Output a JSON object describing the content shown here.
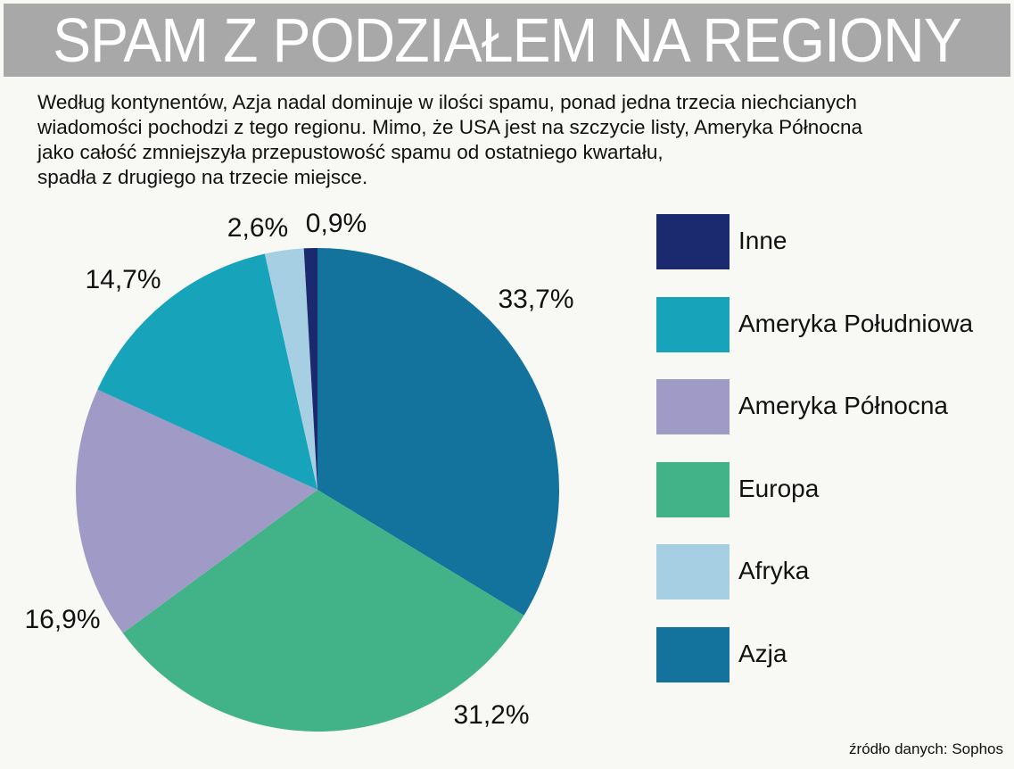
{
  "title": "SPAM Z PODZIAŁEM NA REGIONY",
  "description": "Według kontynentów, Azja nadal dominuje w ilości spamu, ponad jedna trzecia niechcianych\nwiadomości pochodzi z tego regionu. Mimo, że USA jest na szczycie listy, Ameryka Północna\njako całość zmniejszyła przepustowość spamu od ostatniego kwartału,\nspadła z drugiego na trzecie miejsce.",
  "source": "źródło danych: Sophos",
  "chart_data": {
    "type": "pie",
    "title": "SPAM Z PODZIAŁEM NA REGIONY",
    "slices": [
      {
        "name": "Azja",
        "value": 33.7,
        "label": "33,7%",
        "color": "#13739c"
      },
      {
        "name": "Europa",
        "value": 31.2,
        "label": "31,2%",
        "color": "#42b388"
      },
      {
        "name": "Ameryka Północna",
        "value": 16.9,
        "label": "16,9%",
        "color": "#a09bc6"
      },
      {
        "name": "Ameryka Południowa",
        "value": 14.7,
        "label": "14,7%",
        "color": "#17a4ba"
      },
      {
        "name": "Afryka",
        "value": 2.6,
        "label": "2,6%",
        "color": "#a6cfe4"
      },
      {
        "name": "Inne",
        "value": 0.9,
        "label": "0,9%",
        "color": "#1b2a6e"
      }
    ],
    "start_angle": "12 o'clock",
    "direction": "clockwise",
    "legend_position": "right",
    "legend_order": [
      "Inne",
      "Ameryka Południowa",
      "Ameryka Północna",
      "Europa",
      "Afryka",
      "Azja"
    ]
  }
}
